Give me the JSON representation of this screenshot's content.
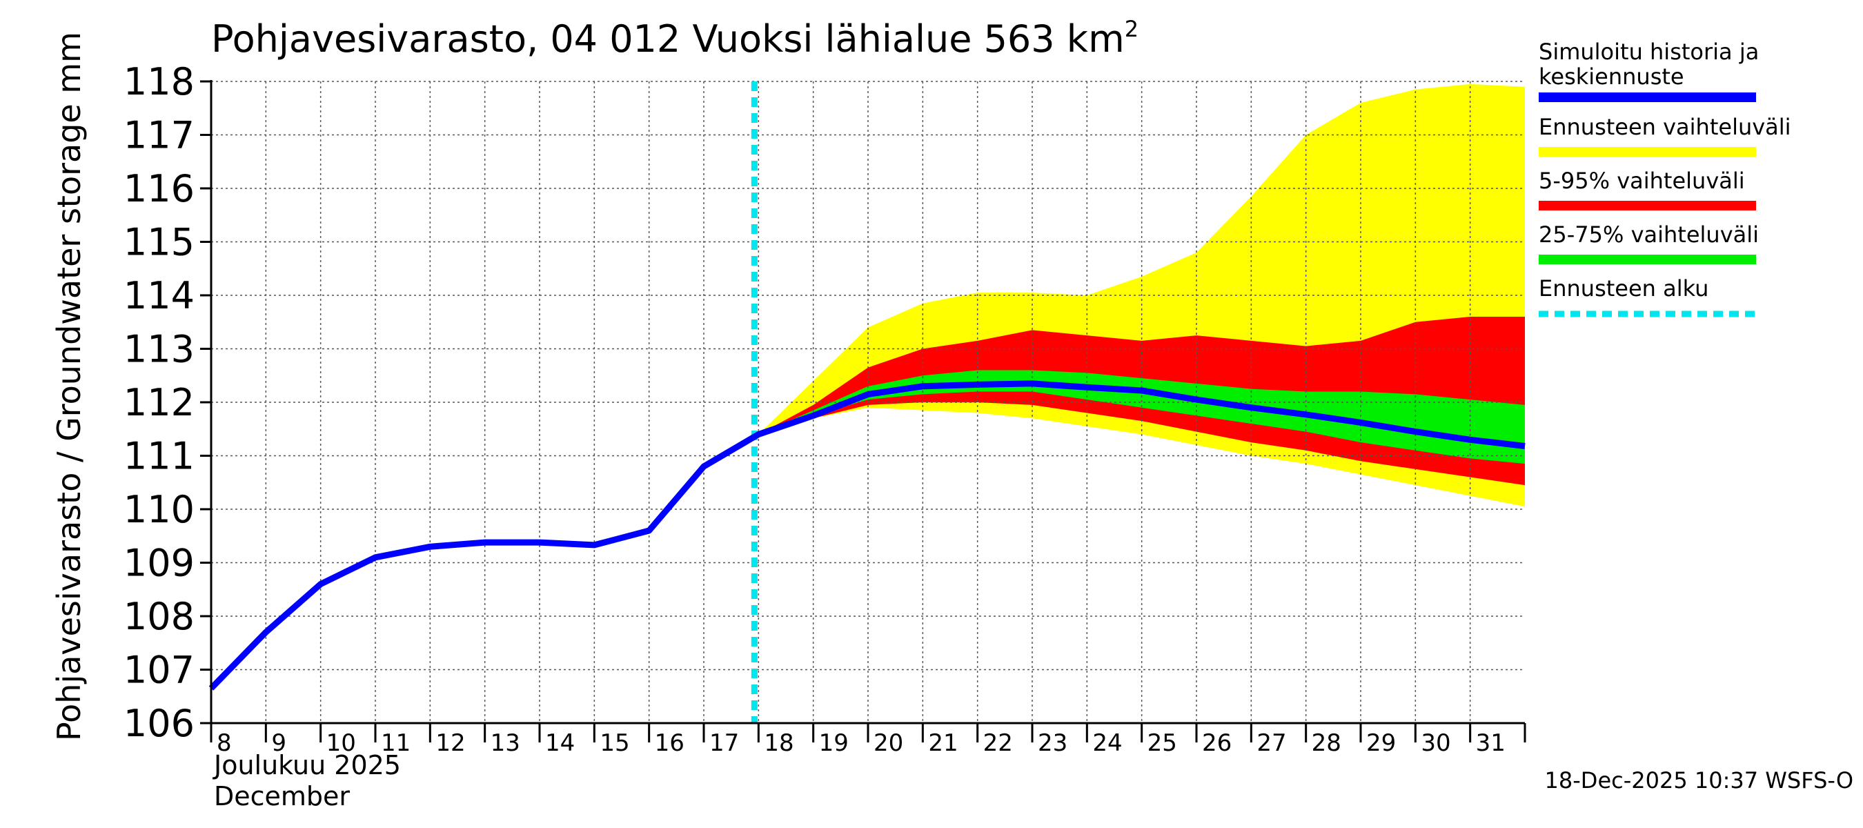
{
  "chart_data": {
    "type": "area",
    "title": "Pohjavesivarasto, 04 012 Vuoksi lähialue 563 km",
    "title_superscript": "2",
    "ylabel": "Pohjavesivarasto / Groundwater storage   mm",
    "xlabel_line1": "Joulukuu  2025",
    "xlabel_line2": "December",
    "ylim": [
      106,
      118
    ],
    "xlim": [
      8,
      32
    ],
    "y_ticks": [
      106,
      107,
      108,
      109,
      110,
      111,
      112,
      113,
      114,
      115,
      116,
      117,
      118
    ],
    "x_ticks": [
      8,
      9,
      10,
      11,
      12,
      13,
      14,
      15,
      16,
      17,
      18,
      19,
      20,
      21,
      22,
      23,
      24,
      25,
      26,
      27,
      28,
      29,
      30,
      31
    ],
    "forecast_start": 18,
    "bands": [
      {
        "name": "Ennusteen vaihteluväli",
        "color": "#ffff00",
        "x": [
          18.0,
          19.0,
          20.0,
          21.0,
          22.0,
          23.0,
          24.0,
          25.0,
          26.0,
          27.0,
          28.0,
          29.0,
          30.0,
          31.0,
          32.0
        ],
        "upper": [
          111.4,
          112.4,
          113.4,
          113.85,
          114.05,
          114.05,
          114.0,
          114.35,
          114.8,
          115.85,
          117.0,
          117.6,
          117.85,
          117.95,
          117.9
        ],
        "lower": [
          111.4,
          111.7,
          111.9,
          111.85,
          111.8,
          111.7,
          111.55,
          111.4,
          111.2,
          111.0,
          110.85,
          110.65,
          110.45,
          110.25,
          110.05
        ]
      },
      {
        "name": "5-95% vaihteluväli",
        "color": "#ff0000",
        "x": [
          18.0,
          19.0,
          20.0,
          21.0,
          22.0,
          23.0,
          24.0,
          25.0,
          26.0,
          27.0,
          28.0,
          29.0,
          30.0,
          31.0,
          32.0
        ],
        "upper": [
          111.4,
          111.95,
          112.65,
          113.0,
          113.15,
          113.35,
          113.25,
          113.15,
          113.25,
          113.15,
          113.05,
          113.15,
          113.5,
          113.6,
          113.6
        ],
        "lower": [
          111.4,
          111.7,
          111.95,
          112.0,
          112.0,
          111.95,
          111.8,
          111.65,
          111.45,
          111.25,
          111.1,
          110.9,
          110.75,
          110.6,
          110.45
        ]
      },
      {
        "name": "25-75% vaihteluväli",
        "color": "#00ee00",
        "x": [
          18.0,
          19.0,
          20.0,
          21.0,
          22.0,
          23.0,
          24.0,
          25.0,
          26.0,
          27.0,
          28.0,
          29.0,
          30.0,
          31.0,
          32.0
        ],
        "upper": [
          111.4,
          111.85,
          112.3,
          112.5,
          112.6,
          112.6,
          112.55,
          112.45,
          112.35,
          112.25,
          112.2,
          112.2,
          112.15,
          112.05,
          111.95
        ],
        "lower": [
          111.4,
          111.75,
          112.05,
          112.15,
          112.2,
          112.2,
          112.05,
          111.9,
          111.75,
          111.6,
          111.45,
          111.25,
          111.1,
          110.95,
          110.85
        ]
      }
    ],
    "series": [
      {
        "name": "Simuloitu historia ja keskiennuste",
        "color": "#0000ff",
        "x": [
          8.0,
          9.0,
          10.0,
          11.0,
          12.0,
          13.0,
          14.0,
          15.0,
          16.0,
          17.0,
          18.0,
          19.0,
          20.0,
          21.0,
          22.0,
          23.0,
          24.0,
          25.0,
          26.0,
          27.0,
          28.0,
          29.0,
          30.0,
          31.0,
          32.0
        ],
        "values": [
          106.65,
          107.7,
          108.6,
          109.1,
          109.3,
          109.38,
          109.38,
          109.33,
          109.6,
          110.8,
          111.4,
          111.75,
          112.15,
          112.3,
          112.33,
          112.35,
          112.28,
          112.22,
          112.05,
          111.9,
          111.77,
          111.62,
          111.45,
          111.3,
          111.18
        ]
      }
    ],
    "legend": [
      {
        "label": "Simuloitu historia ja keskiennuste",
        "color": "#0000ff",
        "style": "solid"
      },
      {
        "label": "Ennusteen vaihteluväli",
        "color": "#ffff00",
        "style": "solid"
      },
      {
        "label": "5-95% vaihteluväli",
        "color": "#ff0000",
        "style": "solid"
      },
      {
        "label": "25-75% vaihteluväli",
        "color": "#00ee00",
        "style": "solid"
      },
      {
        "label": "Ennusteen alku",
        "color": "#00e5ee",
        "style": "dashed"
      }
    ],
    "legend_placement": "right",
    "grid": true
  },
  "footer": "18-Dec-2025 10:37 WSFS-O"
}
